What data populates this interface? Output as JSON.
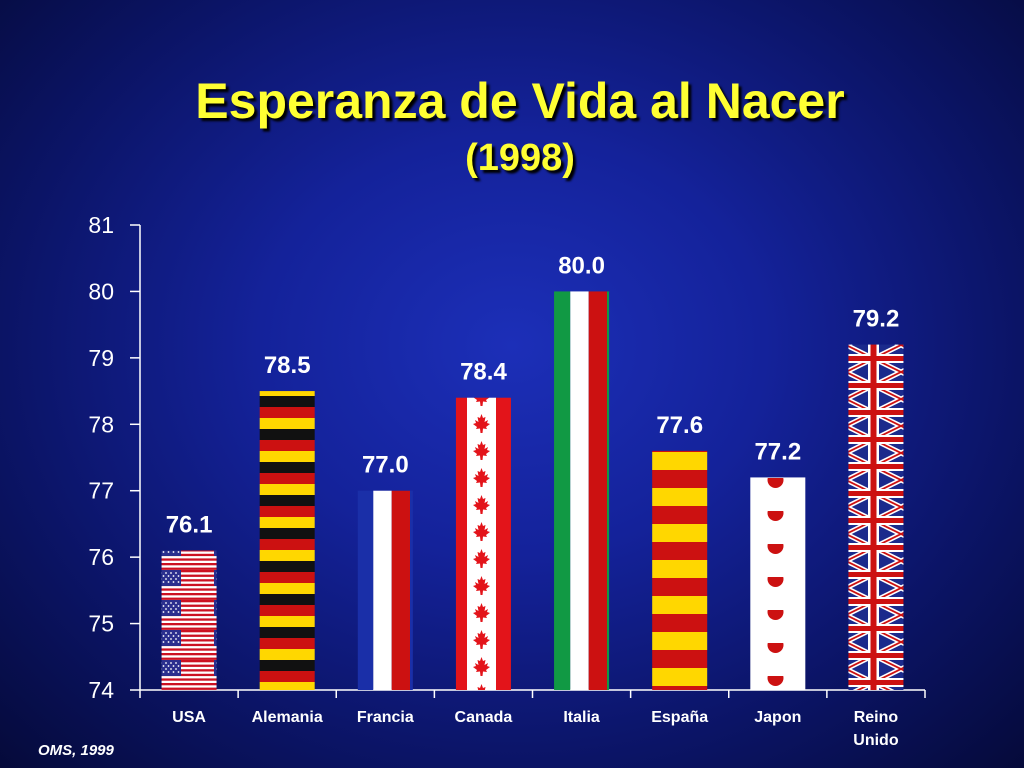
{
  "slide": {
    "title": "Esperanza de Vida al Nacer",
    "subtitle": "(1998)",
    "source": "OMS, 1999"
  },
  "chart_data": {
    "type": "bar",
    "categories": [
      "USA",
      "Alemania",
      "Francia",
      "Canada",
      "Italia",
      "España",
      "Japon",
      "Reino Unido"
    ],
    "category_lines": [
      [
        "USA"
      ],
      [
        "Alemania"
      ],
      [
        "Francia"
      ],
      [
        "Canada"
      ],
      [
        "Italia"
      ],
      [
        "España"
      ],
      [
        "Japon"
      ],
      [
        "Reino",
        "Unido"
      ]
    ],
    "values": [
      76.1,
      78.5,
      77.0,
      78.4,
      80.0,
      77.6,
      77.2,
      79.2
    ],
    "value_labels": [
      "76.1",
      "78.5",
      "77.0",
      "78.4",
      "80.0",
      "77.6",
      "77.2",
      "79.2"
    ],
    "bar_patterns": [
      "usa-flag",
      "germany-flag",
      "france-flag",
      "canada-flag",
      "italy-flag",
      "spain-flag",
      "japan-flag",
      "uk-flag"
    ],
    "ylim": [
      74,
      81
    ],
    "yticks": [
      "74",
      "75",
      "76",
      "77",
      "78",
      "79",
      "80",
      "81"
    ],
    "title": "Esperanza de Vida al Nacer",
    "xlabel": "",
    "ylabel": "",
    "grid": false,
    "legend": "none"
  }
}
